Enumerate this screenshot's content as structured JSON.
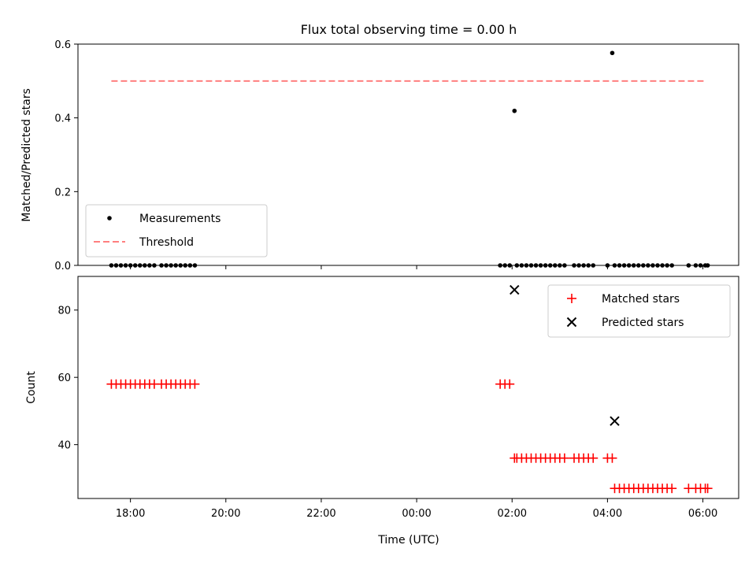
{
  "chart_data": [
    {
      "type": "scatter",
      "title": "Flux total observing time = 0.00 h",
      "xlabel": "",
      "ylabel": "Matched/Predicted stars",
      "xlim": [
        16.9,
        30.75
      ],
      "ylim": [
        0.0,
        0.6
      ],
      "yticks": [
        0.0,
        0.2,
        0.4,
        0.6
      ],
      "ytick_labels": [
        "0.0",
        "0.2",
        "0.4",
        "0.6"
      ],
      "grid": false,
      "legend": {
        "placement": "lower-left",
        "entries": [
          "Measurements",
          "Threshold"
        ]
      },
      "series": [
        {
          "name": "Measurements",
          "color": "#000000",
          "marker": "dot",
          "x": [
            17.6,
            17.7,
            17.8,
            17.9,
            18.0,
            18.1,
            18.2,
            18.3,
            18.4,
            18.5,
            18.65,
            18.75,
            18.85,
            18.95,
            19.05,
            19.15,
            19.25,
            19.35,
            25.75,
            25.85,
            25.95,
            26.05,
            26.1,
            26.2,
            26.3,
            26.4,
            26.5,
            26.6,
            26.7,
            26.8,
            26.9,
            27.0,
            27.1,
            27.3,
            27.4,
            27.5,
            27.6,
            27.7,
            28.0,
            28.1,
            28.15,
            28.25,
            28.35,
            28.45,
            28.55,
            28.65,
            28.75,
            28.85,
            28.95,
            29.05,
            29.15,
            29.25,
            29.35,
            29.7,
            29.85,
            29.95,
            30.05,
            30.1
          ],
          "y": [
            0,
            0,
            0,
            0,
            0,
            0,
            0,
            0,
            0,
            0,
            0,
            0,
            0,
            0,
            0,
            0,
            0,
            0,
            0,
            0,
            0,
            0.419,
            0,
            0,
            0,
            0,
            0,
            0,
            0,
            0,
            0,
            0,
            0,
            0,
            0,
            0,
            0,
            0,
            0,
            0.576,
            0,
            0,
            0,
            0,
            0,
            0,
            0,
            0,
            0,
            0,
            0,
            0,
            0,
            0,
            0,
            0,
            0,
            0
          ]
        },
        {
          "name": "Threshold",
          "color": "#ff7f7f",
          "style": "dashed",
          "x": [
            17.6,
            30.05
          ],
          "y": [
            0.5,
            0.5
          ]
        }
      ]
    },
    {
      "type": "scatter",
      "title": "",
      "xlabel": "Time (UTC)",
      "ylabel": "Count",
      "xlim": [
        16.9,
        30.75
      ],
      "ylim": [
        24,
        90
      ],
      "xticks": [
        18,
        20,
        22,
        24,
        26,
        28,
        30
      ],
      "xtick_labels": [
        "18:00",
        "20:00",
        "22:00",
        "00:00",
        "02:00",
        "04:00",
        "06:00"
      ],
      "yticks": [
        40,
        60,
        80
      ],
      "ytick_labels": [
        "40",
        "60",
        "80"
      ],
      "grid": false,
      "legend": {
        "placement": "top-right",
        "entries": [
          "Matched stars",
          "Predicted stars"
        ]
      },
      "series": [
        {
          "name": "Matched stars",
          "color": "#ff0000",
          "marker": "plus",
          "x": [
            17.6,
            17.7,
            17.8,
            17.9,
            18.0,
            18.1,
            18.2,
            18.3,
            18.4,
            18.5,
            18.65,
            18.75,
            18.85,
            18.95,
            19.05,
            19.15,
            19.25,
            19.35,
            25.75,
            25.85,
            25.95,
            26.05,
            26.1,
            26.2,
            26.3,
            26.4,
            26.5,
            26.6,
            26.7,
            26.8,
            26.9,
            27.0,
            27.1,
            27.3,
            27.4,
            27.5,
            27.6,
            27.7,
            28.0,
            28.1,
            28.15,
            28.25,
            28.35,
            28.45,
            28.55,
            28.65,
            28.75,
            28.85,
            28.95,
            29.05,
            29.15,
            29.25,
            29.35,
            29.7,
            29.85,
            29.95,
            30.05,
            30.1
          ],
          "y": [
            58,
            58,
            58,
            58,
            58,
            58,
            58,
            58,
            58,
            58,
            58,
            58,
            58,
            58,
            58,
            58,
            58,
            58,
            58,
            58,
            58,
            36,
            36,
            36,
            36,
            36,
            36,
            36,
            36,
            36,
            36,
            36,
            36,
            36,
            36,
            36,
            36,
            36,
            36,
            36,
            27,
            27,
            27,
            27,
            27,
            27,
            27,
            27,
            27,
            27,
            27,
            27,
            27,
            27,
            27,
            27,
            27,
            27
          ]
        },
        {
          "name": "Predicted stars",
          "color": "#000000",
          "marker": "x",
          "x": [
            26.05,
            28.15
          ],
          "y": [
            86,
            47
          ]
        }
      ]
    }
  ]
}
